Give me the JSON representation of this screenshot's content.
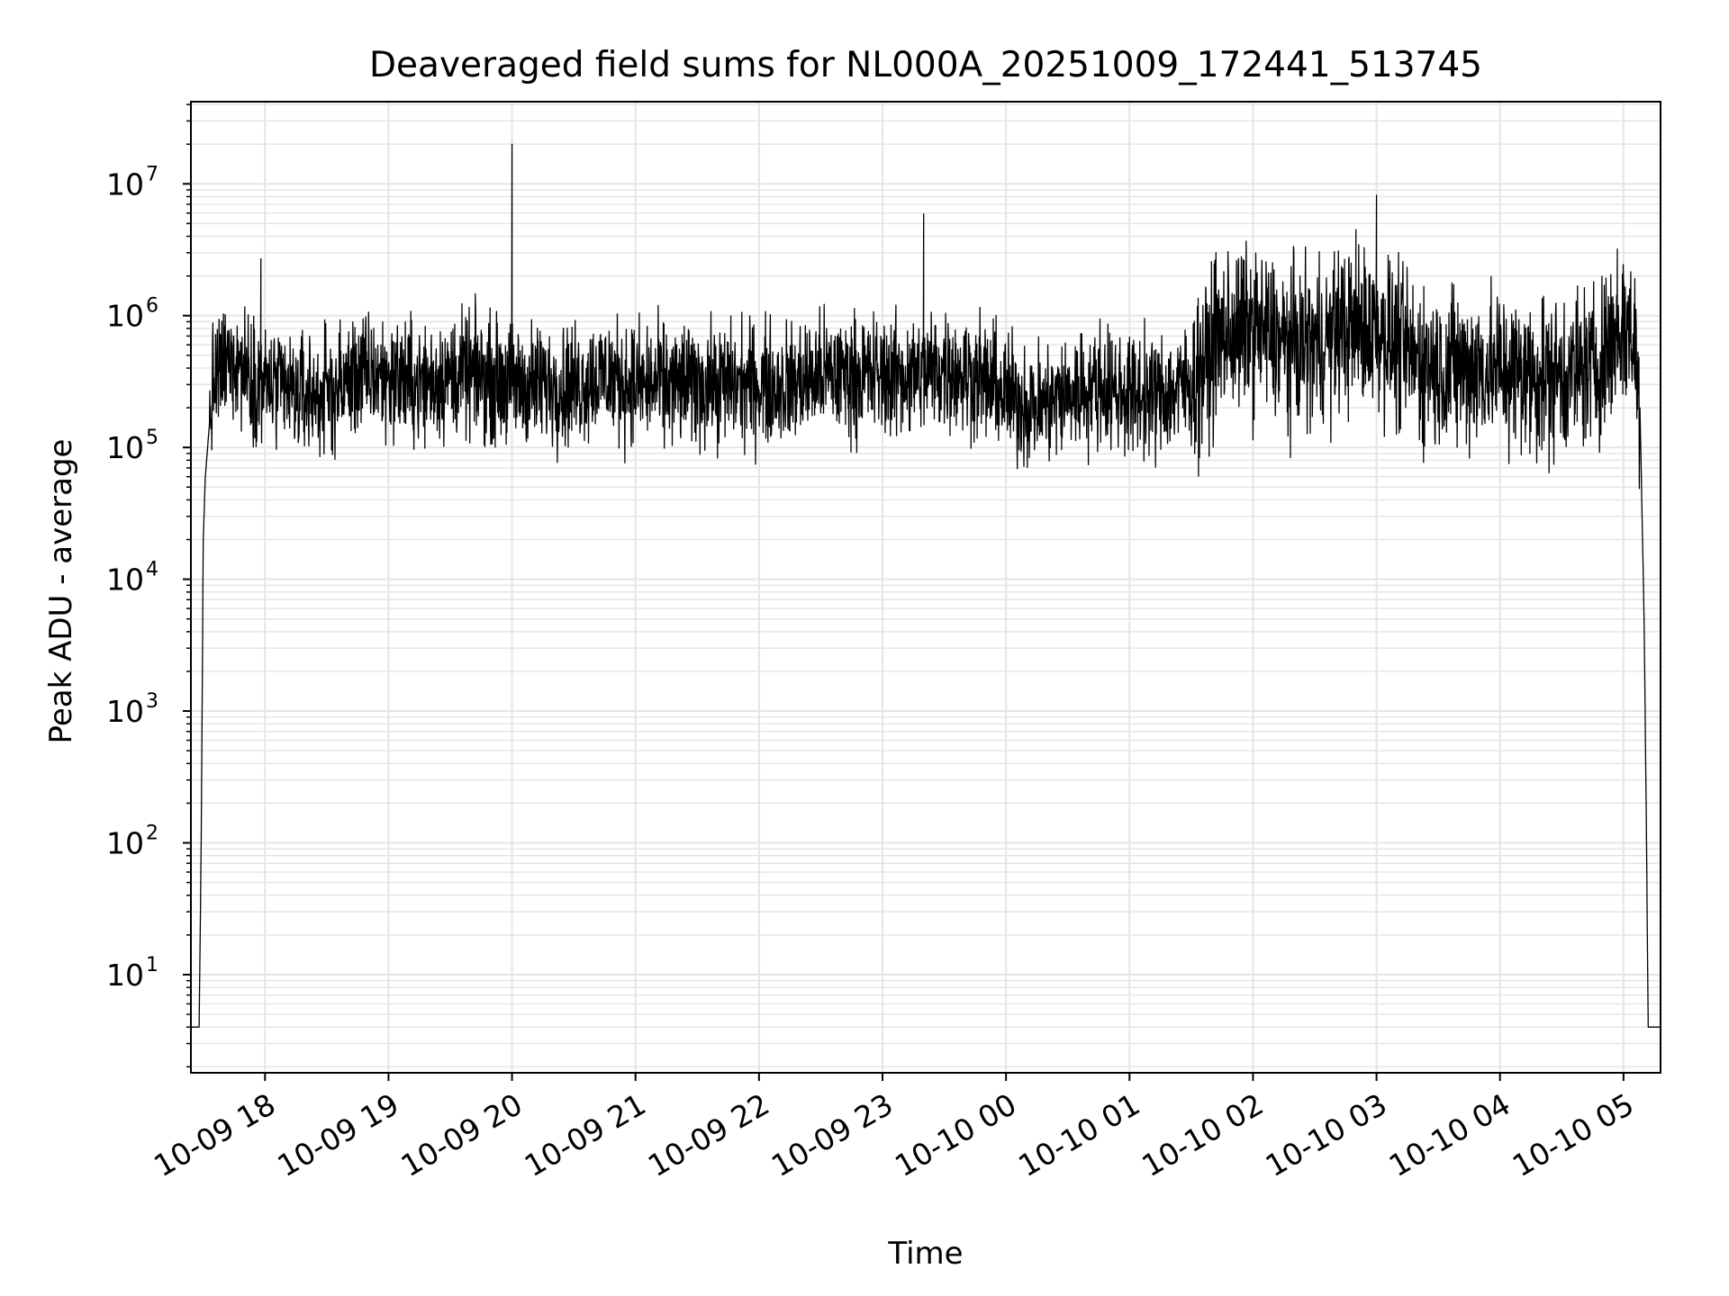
{
  "chart_data": {
    "type": "line",
    "title": "Deaveraged field sums for NL000A_20251009_172441_513745",
    "xlabel": "Time",
    "ylabel": "Peak ADU - average",
    "yscale": "log",
    "ylim": [
      1.8,
      42000000
    ],
    "xlim": [
      "2025-10-09 17:24",
      "2025-10-10 05:18"
    ],
    "grid": true,
    "line_color": "#000000",
    "grid_color": "#e5e5e5",
    "x_tick_labels": [
      "10-09 18",
      "10-09 19",
      "10-09 20",
      "10-09 21",
      "10-09 22",
      "10-09 23",
      "10-10 00",
      "10-10 01",
      "10-10 02",
      "10-10 03",
      "10-10 04",
      "10-10 05"
    ],
    "x_ticks": [
      "2025-10-09 18:00",
      "2025-10-09 19:00",
      "2025-10-09 20:00",
      "2025-10-09 21:00",
      "2025-10-09 22:00",
      "2025-10-09 23:00",
      "2025-10-10 00:00",
      "2025-10-10 01:00",
      "2025-10-10 02:00",
      "2025-10-10 03:00",
      "2025-10-10 04:00",
      "2025-10-10 05:00"
    ],
    "y_tick_labels": [
      {
        "base": "10",
        "exp": "1"
      },
      {
        "base": "10",
        "exp": "2"
      },
      {
        "base": "10",
        "exp": "3"
      },
      {
        "base": "10",
        "exp": "4"
      },
      {
        "base": "10",
        "exp": "5"
      },
      {
        "base": "10",
        "exp": "6"
      },
      {
        "base": "10",
        "exp": "7"
      }
    ],
    "y_ticks": [
      10,
      100,
      1000,
      10000,
      100000,
      1000000,
      10000000
    ],
    "series": [
      {
        "x": [
          "2025-10-09 17:24",
          "2025-10-09 17:28",
          "2025-10-09 17:29",
          "2025-10-09 17:30",
          "2025-10-09 17:31",
          "2025-10-09 17:33",
          "2025-10-09 17:35",
          "2025-10-09 17:40",
          "2025-10-09 17:45",
          "2025-10-09 17:50",
          "2025-10-09 18:00",
          "2025-10-09 18:15",
          "2025-10-09 18:30",
          "2025-10-09 18:45",
          "2025-10-09 19:00",
          "2025-10-09 19:15",
          "2025-10-09 19:30",
          "2025-10-09 19:45",
          "2025-10-09 20:00",
          "2025-10-09 20:15",
          "2025-10-09 20:30",
          "2025-10-09 20:45",
          "2025-10-09 21:00",
          "2025-10-09 21:15",
          "2025-10-09 21:30",
          "2025-10-09 21:45",
          "2025-10-09 22:00",
          "2025-10-09 22:15",
          "2025-10-09 22:30",
          "2025-10-09 22:45",
          "2025-10-09 23:00",
          "2025-10-09 23:15",
          "2025-10-09 23:30",
          "2025-10-09 23:45",
          "2025-10-10 00:00",
          "2025-10-10 00:15",
          "2025-10-10 00:30",
          "2025-10-10 00:45",
          "2025-10-10 01:00",
          "2025-10-10 01:15",
          "2025-10-10 01:30",
          "2025-10-10 01:45",
          "2025-10-10 02:00",
          "2025-10-10 02:15",
          "2025-10-10 02:30",
          "2025-10-10 02:45",
          "2025-10-10 03:00",
          "2025-10-10 03:15",
          "2025-10-10 03:30",
          "2025-10-10 03:45",
          "2025-10-10 04:00",
          "2025-10-10 04:15",
          "2025-10-10 04:30",
          "2025-10-10 04:45",
          "2025-10-10 05:00",
          "2025-10-10 05:05",
          "2025-10-10 05:08",
          "2025-10-10 05:10",
          "2025-10-10 05:11",
          "2025-10-10 05:12",
          "2025-10-10 05:18"
        ],
        "y": [
          4,
          4,
          100,
          20000,
          60000,
          150000,
          300000,
          400000,
          500000,
          400000,
          300000,
          250000,
          250000,
          350000,
          350000,
          300000,
          350000,
          350000,
          300000,
          300000,
          300000,
          350000,
          300000,
          300000,
          300000,
          300000,
          300000,
          300000,
          350000,
          350000,
          350000,
          350000,
          400000,
          350000,
          250000,
          200000,
          250000,
          300000,
          250000,
          250000,
          300000,
          700000,
          800000,
          600000,
          600000,
          800000,
          800000,
          500000,
          400000,
          400000,
          400000,
          350000,
          350000,
          400000,
          800000,
          700000,
          200000,
          5000,
          200,
          4,
          4
        ]
      }
    ],
    "spikes": [
      {
        "x": "2025-10-09 17:58",
        "y": 2700000
      },
      {
        "x": "2025-10-09 20:00",
        "y": 20000000
      },
      {
        "x": "2025-10-09 23:20",
        "y": 5900000
      },
      {
        "x": "2025-10-10 01:42",
        "y": 3000000
      },
      {
        "x": "2025-10-10 02:50",
        "y": 4500000
      },
      {
        "x": "2025-10-10 03:00",
        "y": 8200000
      },
      {
        "x": "2025-10-10 04:57",
        "y": 3200000
      }
    ],
    "noise_decades": {
      "before_01_30": 0.45,
      "after_01_30": 0.6
    }
  }
}
